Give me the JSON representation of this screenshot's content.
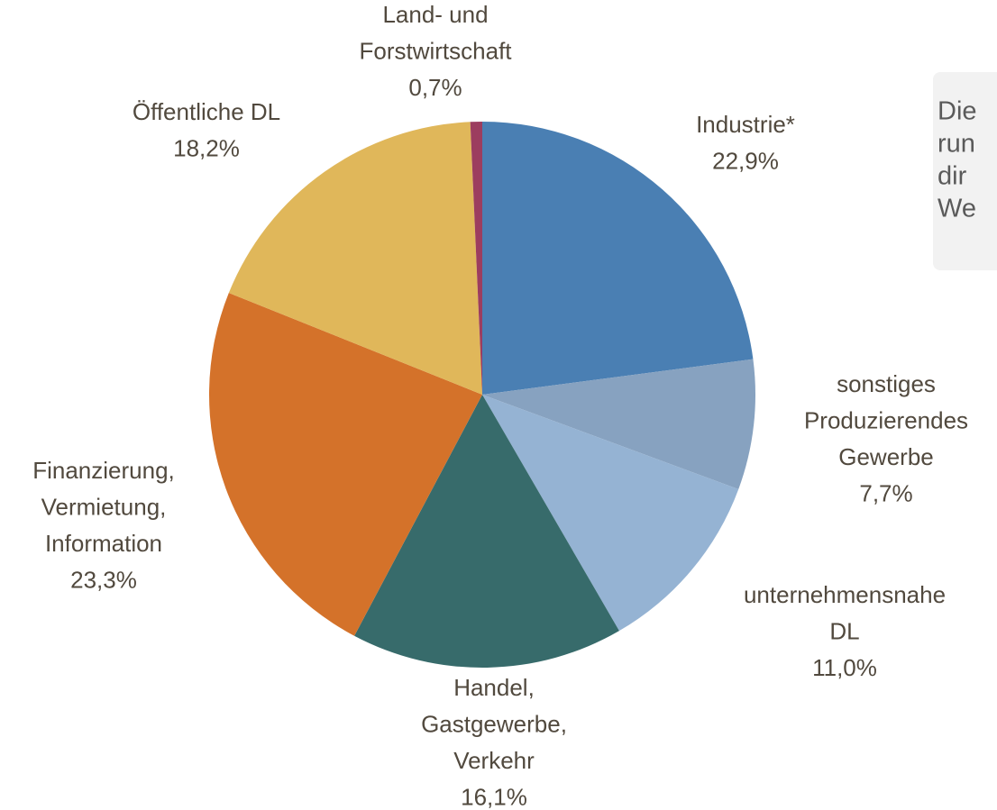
{
  "chart_data": {
    "type": "pie",
    "categories": [
      [
        "Industrie*"
      ],
      [
        "sonstiges",
        "Produzierendes",
        "Gewerbe"
      ],
      [
        "unternehmensnahe",
        "DL"
      ],
      [
        "Handel,",
        "Gastgewerbe,",
        "Verkehr"
      ],
      [
        "Finanzierung,",
        "Vermietung,",
        "Information"
      ],
      [
        "Öffentliche DL"
      ],
      [
        "Land- und",
        "Forstwirtschaft"
      ]
    ],
    "values": [
      22.9,
      7.7,
      11.0,
      16.1,
      23.3,
      18.2,
      0.7
    ],
    "value_labels": [
      "22,9%",
      "7,7%",
      "11,0%",
      "16,1%",
      "23,3%",
      "18,2%",
      "0,7%"
    ],
    "colors": [
      "#4a7fb3",
      "#87a2c0",
      "#95b3d3",
      "#376b6b",
      "#d4722a",
      "#e0b75a",
      "#9c3d5f"
    ],
    "annotation": [
      "Die",
      "run",
      "dir",
      "We"
    ]
  }
}
